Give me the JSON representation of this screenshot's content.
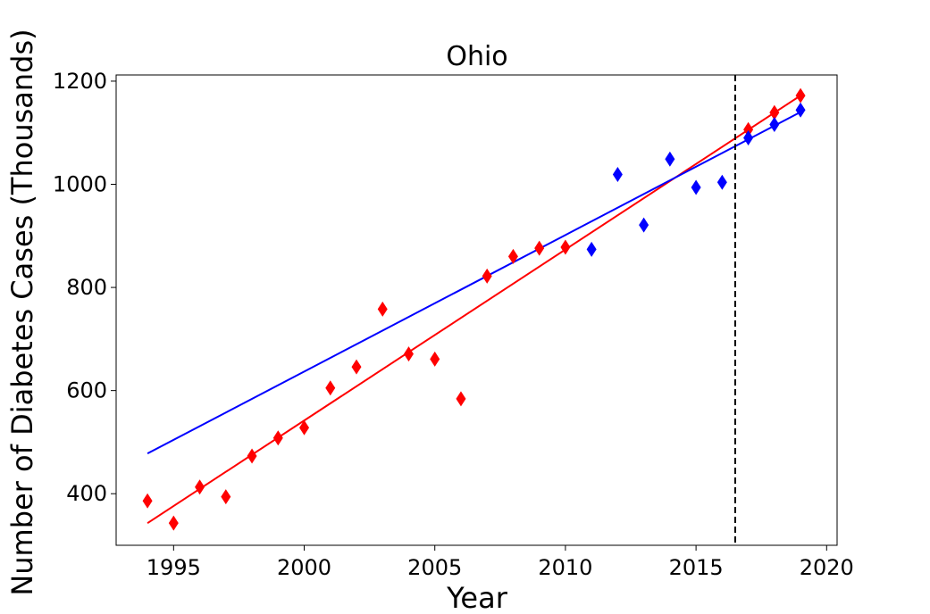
{
  "chart_data": {
    "type": "scatter",
    "title": "Ohio",
    "xlabel": "Year",
    "ylabel": "Number of Diabetes Cases (Thousands)",
    "xlim": [
      1992.8,
      2020.4
    ],
    "ylim": [
      300,
      1212
    ],
    "xticks": [
      1995,
      2000,
      2005,
      2010,
      2015,
      2020
    ],
    "yticks": [
      400,
      600,
      800,
      1000,
      1200
    ],
    "grid": false,
    "legend": "none",
    "vertical_marker_x": 2016.5,
    "series": [
      {
        "marker": "diamond",
        "color": "#ff0000",
        "x": [
          1994,
          1995,
          1996,
          1997,
          1998,
          1999,
          2000,
          2001,
          2002,
          2003,
          2004,
          2005,
          2006,
          2007,
          2008,
          2009,
          2010,
          2017,
          2018,
          2019
        ],
        "y": [
          386,
          343,
          413,
          394,
          473,
          508,
          528,
          605,
          646,
          758,
          671,
          661,
          584,
          822,
          860,
          876,
          878,
          1106,
          1139,
          1172
        ]
      },
      {
        "marker": "diamond",
        "color": "#0000ff",
        "x": [
          2011,
          2012,
          2013,
          2014,
          2015,
          2016,
          2017,
          2018,
          2019
        ],
        "y": [
          874,
          1019,
          921,
          1049,
          994,
          1004,
          1090,
          1116,
          1144
        ]
      }
    ],
    "fit_lines": [
      {
        "color": "#ff0000",
        "x": [
          1994,
          2019
        ],
        "y": [
          343,
          1172
        ]
      },
      {
        "color": "#0000ff",
        "x": [
          1994,
          2019
        ],
        "y": [
          478,
          1140
        ]
      }
    ]
  }
}
